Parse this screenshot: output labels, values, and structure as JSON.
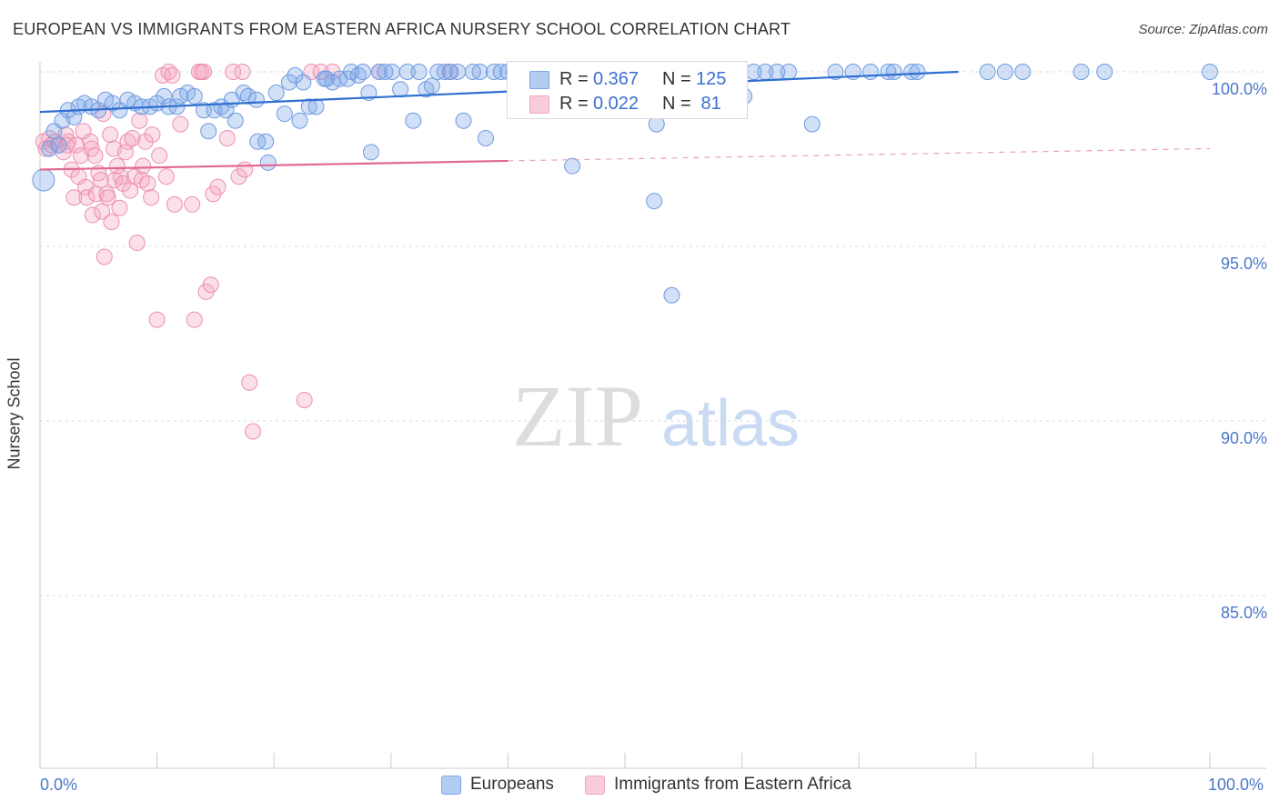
{
  "title": "EUROPEAN VS IMMIGRANTS FROM EASTERN AFRICA NURSERY SCHOOL CORRELATION CHART",
  "source": "Source: ZipAtlas.com",
  "watermark": {
    "zip": "ZIP",
    "atlas": "atlas"
  },
  "legend": {
    "europeans": {
      "r_label": "R = ",
      "r_value": "0.367",
      "n_label": "N = ",
      "n_value": "125",
      "color": "#7ba6e8"
    },
    "immigrants": {
      "r_label": "R = ",
      "r_value": "0.022",
      "n_label": "N = ",
      "n_value": " 81",
      "color": "#f3a5bf"
    }
  },
  "bottom_legend": {
    "europeans": "Europeans",
    "immigrants": "Immigrants from Eastern Africa"
  },
  "chart_data": {
    "type": "scatter",
    "title": "EUROPEAN VS IMMIGRANTS FROM EASTERN AFRICA NURSERY SCHOOL CORRELATION CHART",
    "xlabel": "",
    "ylabel": "Nursery School",
    "xlim": [
      0,
      100
    ],
    "ylim": [
      80.5,
      100.9
    ],
    "x_tick_labels": [
      "0.0%",
      "100.0%"
    ],
    "y_ticks": [
      {
        "value": 100,
        "label": "100.0%"
      },
      {
        "value": 95,
        "label": "95.0%"
      },
      {
        "value": 90,
        "label": "90.0%"
      },
      {
        "value": 85,
        "label": "85.0%"
      }
    ],
    "grid": true,
    "series": [
      {
        "name": "Europeans",
        "color": "#7ba6e8",
        "trend": {
          "x0": 0,
          "y0": 98.85,
          "x1": 78.5,
          "y1": 100.0,
          "dashed_to": null
        },
        "points": [
          [
            0.3,
            96.9
          ],
          [
            0.8,
            97.8
          ],
          [
            1.2,
            98.3
          ],
          [
            1.6,
            97.9
          ],
          [
            1.9,
            98.6
          ],
          [
            2.4,
            98.9
          ],
          [
            2.9,
            98.7
          ],
          [
            3.3,
            99.0
          ],
          [
            3.8,
            99.1
          ],
          [
            4.4,
            99.0
          ],
          [
            5.0,
            98.9
          ],
          [
            5.6,
            99.2
          ],
          [
            6.2,
            99.1
          ],
          [
            6.8,
            98.9
          ],
          [
            7.5,
            99.2
          ],
          [
            8.1,
            99.1
          ],
          [
            8.7,
            99.0
          ],
          [
            9.4,
            99.0
          ],
          [
            10.0,
            99.1
          ],
          [
            10.6,
            99.3
          ],
          [
            11.0,
            99.0
          ],
          [
            11.7,
            99.0
          ],
          [
            12.0,
            99.3
          ],
          [
            12.6,
            99.4
          ],
          [
            13.2,
            99.3
          ],
          [
            14.0,
            98.9
          ],
          [
            14.4,
            98.3
          ],
          [
            14.9,
            98.9
          ],
          [
            15.5,
            99.0
          ],
          [
            15.9,
            98.9
          ],
          [
            16.4,
            99.2
          ],
          [
            16.7,
            98.6
          ],
          [
            17.4,
            99.4
          ],
          [
            17.8,
            99.3
          ],
          [
            18.5,
            99.2
          ],
          [
            18.6,
            98.0
          ],
          [
            19.3,
            98.0
          ],
          [
            19.5,
            97.4
          ],
          [
            20.2,
            99.4
          ],
          [
            20.9,
            98.8
          ],
          [
            21.3,
            99.7
          ],
          [
            22.2,
            98.6
          ],
          [
            22.5,
            99.7
          ],
          [
            23.0,
            99.0
          ],
          [
            23.6,
            99.0
          ],
          [
            24.3,
            99.8
          ],
          [
            25.0,
            99.7
          ],
          [
            25.6,
            99.8
          ],
          [
            26.3,
            99.8
          ],
          [
            26.6,
            100.0
          ],
          [
            27.2,
            99.9
          ],
          [
            27.6,
            100.0
          ],
          [
            28.1,
            99.4
          ],
          [
            28.3,
            97.7
          ],
          [
            29.0,
            100.0
          ],
          [
            29.5,
            100.0
          ],
          [
            30.1,
            100.0
          ],
          [
            30.8,
            99.5
          ],
          [
            31.4,
            100.0
          ],
          [
            31.9,
            98.6
          ],
          [
            32.4,
            100.0
          ],
          [
            33.0,
            99.5
          ],
          [
            33.5,
            99.6
          ],
          [
            34.0,
            100.0
          ],
          [
            34.6,
            100.0
          ],
          [
            35.1,
            100.0
          ],
          [
            35.7,
            100.0
          ],
          [
            36.2,
            98.6
          ],
          [
            37.0,
            100.0
          ],
          [
            37.6,
            100.0
          ],
          [
            38.1,
            98.1
          ],
          [
            38.8,
            100.0
          ],
          [
            39.4,
            100.0
          ],
          [
            40.0,
            100.0
          ],
          [
            40.5,
            100.0
          ],
          [
            41.1,
            100.0
          ],
          [
            41.6,
            100.0
          ],
          [
            42.3,
            100.0
          ],
          [
            42.9,
            100.0
          ],
          [
            43.4,
            100.0
          ],
          [
            44.0,
            100.0
          ],
          [
            44.6,
            100.0
          ],
          [
            45.2,
            100.0
          ],
          [
            45.9,
            100.0
          ],
          [
            46.5,
            100.0
          ],
          [
            47.1,
            100.0
          ],
          [
            47.8,
            100.0
          ],
          [
            48.4,
            100.0
          ],
          [
            49.0,
            100.0
          ],
          [
            49.5,
            100.0
          ],
          [
            50.2,
            100.0
          ],
          [
            50.8,
            100.0
          ],
          [
            51.4,
            100.0
          ],
          [
            52.0,
            100.0
          ],
          [
            52.7,
            98.5
          ],
          [
            53.3,
            100.0
          ],
          [
            54.0,
            100.0
          ],
          [
            54.7,
            100.0
          ],
          [
            55.5,
            100.0
          ],
          [
            56.3,
            100.0
          ],
          [
            57.0,
            100.0
          ],
          [
            57.6,
            100.0
          ],
          [
            58.2,
            100.0
          ],
          [
            58.8,
            100.0
          ],
          [
            59.5,
            100.0
          ],
          [
            60.2,
            99.3
          ],
          [
            61.0,
            100.0
          ],
          [
            62.0,
            100.0
          ],
          [
            63.0,
            100.0
          ],
          [
            64.0,
            100.0
          ],
          [
            66.0,
            98.5
          ],
          [
            68.0,
            100.0
          ],
          [
            69.5,
            100.0
          ],
          [
            71.0,
            100.0
          ],
          [
            72.5,
            100.0
          ],
          [
            73.0,
            100.0
          ],
          [
            74.5,
            100.0
          ],
          [
            75.0,
            100.0
          ],
          [
            81.0,
            100.0
          ],
          [
            82.5,
            100.0
          ],
          [
            84.0,
            100.0
          ],
          [
            89.0,
            100.0
          ],
          [
            91.0,
            100.0
          ],
          [
            100.0,
            100.0
          ],
          [
            45.5,
            97.3
          ],
          [
            52.5,
            96.3
          ],
          [
            54.0,
            93.6
          ],
          [
            24.5,
            99.8
          ],
          [
            21.8,
            99.9
          ],
          [
            43.5,
            100.0
          ]
        ]
      },
      {
        "name": "Immigrants from Eastern Africa",
        "color": "#f3a5bf",
        "trend": {
          "x0": 0,
          "y0": 97.2,
          "x1": 40,
          "y1": 97.45,
          "dashed_to": [
            100,
            97.8
          ]
        },
        "points": [
          [
            0.3,
            98.0
          ],
          [
            0.5,
            97.8
          ],
          [
            0.8,
            98.1
          ],
          [
            1.0,
            97.9
          ],
          [
            1.3,
            98.0
          ],
          [
            1.6,
            97.9
          ],
          [
            2.0,
            97.7
          ],
          [
            2.2,
            98.2
          ],
          [
            2.4,
            98.0
          ],
          [
            2.7,
            97.2
          ],
          [
            2.9,
            96.4
          ],
          [
            3.1,
            97.9
          ],
          [
            3.3,
            97.0
          ],
          [
            3.5,
            97.6
          ],
          [
            3.7,
            98.3
          ],
          [
            3.9,
            96.7
          ],
          [
            4.0,
            96.4
          ],
          [
            4.3,
            98.0
          ],
          [
            4.4,
            97.8
          ],
          [
            4.5,
            95.9
          ],
          [
            4.7,
            97.6
          ],
          [
            4.8,
            96.5
          ],
          [
            5.0,
            97.1
          ],
          [
            5.2,
            96.9
          ],
          [
            5.3,
            96.0
          ],
          [
            5.4,
            98.8
          ],
          [
            5.5,
            94.7
          ],
          [
            5.7,
            96.5
          ],
          [
            5.8,
            96.4
          ],
          [
            6.0,
            98.2
          ],
          [
            6.1,
            95.7
          ],
          [
            6.3,
            97.8
          ],
          [
            6.4,
            96.9
          ],
          [
            6.6,
            97.3
          ],
          [
            6.8,
            96.1
          ],
          [
            6.9,
            97.0
          ],
          [
            7.1,
            96.8
          ],
          [
            7.3,
            97.7
          ],
          [
            7.5,
            98.0
          ],
          [
            7.7,
            96.6
          ],
          [
            7.9,
            98.1
          ],
          [
            8.1,
            97.0
          ],
          [
            8.3,
            95.1
          ],
          [
            8.5,
            98.6
          ],
          [
            8.7,
            96.9
          ],
          [
            8.8,
            97.3
          ],
          [
            9.0,
            98.0
          ],
          [
            9.2,
            96.8
          ],
          [
            9.5,
            96.4
          ],
          [
            9.6,
            98.2
          ],
          [
            10.0,
            92.9
          ],
          [
            10.2,
            97.6
          ],
          [
            10.5,
            99.9
          ],
          [
            10.8,
            97.0
          ],
          [
            11.0,
            100.0
          ],
          [
            11.3,
            99.9
          ],
          [
            11.5,
            96.2
          ],
          [
            12.0,
            98.5
          ],
          [
            13.0,
            96.2
          ],
          [
            13.2,
            92.9
          ],
          [
            13.6,
            100.0
          ],
          [
            13.8,
            100.0
          ],
          [
            14.0,
            100.0
          ],
          [
            14.2,
            93.7
          ],
          [
            14.6,
            93.9
          ],
          [
            14.8,
            96.5
          ],
          [
            15.2,
            96.7
          ],
          [
            16.0,
            98.1
          ],
          [
            16.5,
            100.0
          ],
          [
            17.0,
            97.0
          ],
          [
            17.3,
            100.0
          ],
          [
            17.5,
            97.2
          ],
          [
            17.9,
            91.1
          ],
          [
            18.2,
            89.7
          ],
          [
            22.6,
            90.6
          ],
          [
            23.2,
            100.0
          ],
          [
            24.0,
            100.0
          ],
          [
            25.0,
            100.0
          ],
          [
            29.0,
            100.0
          ],
          [
            35.0,
            100.0
          ],
          [
            2.3,
            97.9
          ]
        ]
      }
    ]
  }
}
